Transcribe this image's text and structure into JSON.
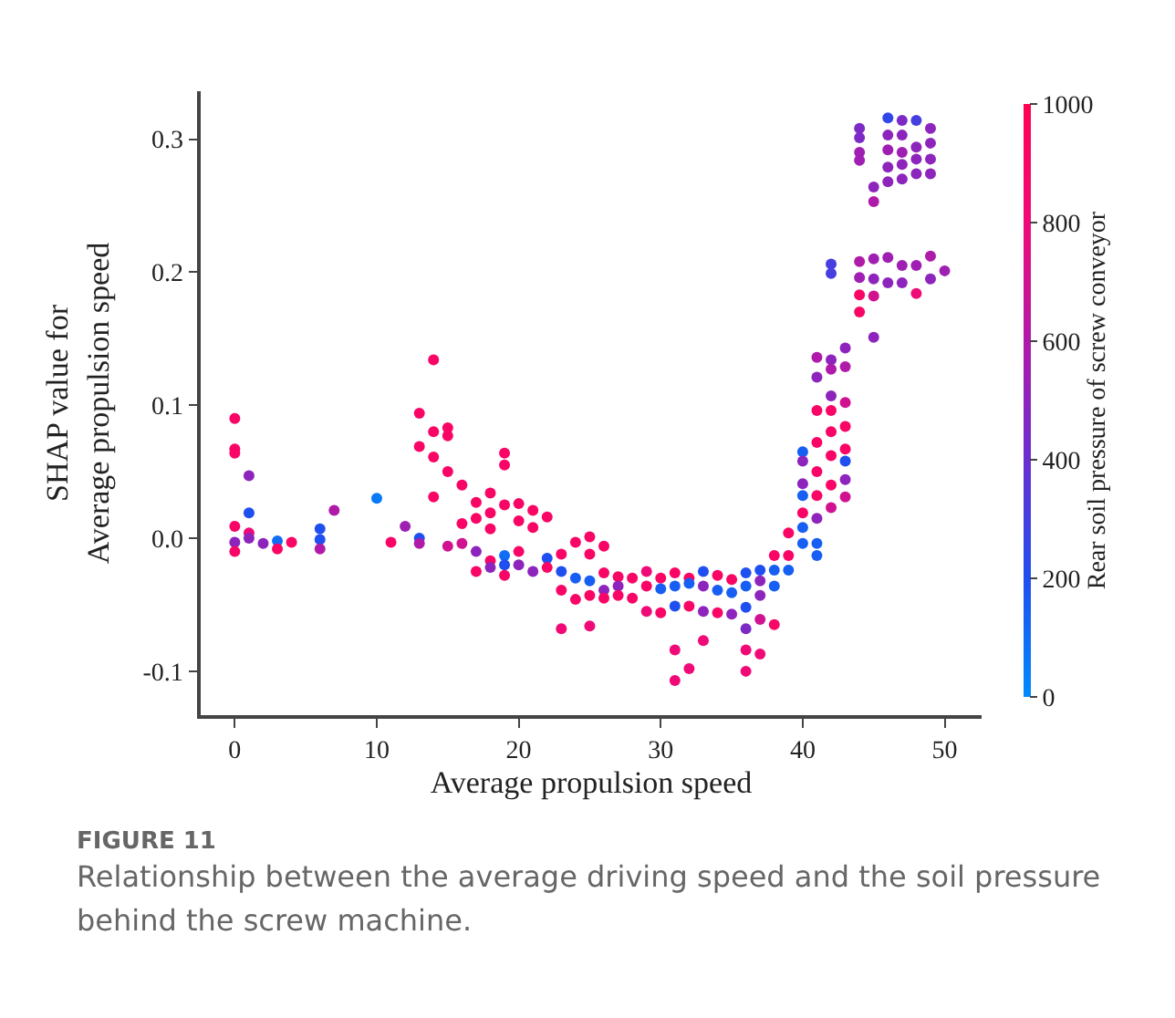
{
  "chart_data": {
    "type": "scatter",
    "xlabel": "Average propulsion speed",
    "ylabel": "SHAP value for\nAverage propulsion speed",
    "clabel": "Rear soil pressure of screw conveyor",
    "annotations": [
      "FIGURE 11",
      "Relationship between the average driving speed and the soil pressure behind the screw machine."
    ],
    "xlim": [
      -2.4,
      52.6
    ],
    "xticks": [
      0,
      10,
      20,
      30,
      40,
      50
    ],
    "ylim": [
      -0.133,
      0.336
    ],
    "yticks": [
      -0.1,
      {
        "value": 0,
        "label": "0.0"
      },
      0.1,
      0.2,
      0.3
    ],
    "clim": [
      0,
      1000
    ],
    "cticks": [
      0,
      200,
      400,
      600,
      800,
      1000
    ],
    "grid": false,
    "marker": "circle",
    "x": [
      0,
      0,
      0,
      0,
      0,
      0,
      1,
      1,
      1,
      1,
      2,
      3,
      3,
      4,
      6,
      6,
      6,
      7,
      10,
      11,
      12,
      13,
      13,
      13,
      13,
      14,
      14,
      14,
      14,
      15,
      15,
      15,
      15,
      16,
      16,
      16,
      17,
      17,
      17,
      17,
      18,
      18,
      18,
      18,
      18,
      19,
      19,
      19,
      19,
      19,
      19,
      20,
      20,
      20,
      20,
      21,
      21,
      21,
      22,
      22,
      22,
      23,
      23,
      23,
      23,
      24,
      24,
      24,
      25,
      25,
      25,
      25,
      25,
      26,
      26,
      26,
      26,
      27,
      27,
      27,
      28,
      28,
      29,
      29,
      29,
      30,
      30,
      30,
      31,
      31,
      31,
      31,
      31,
      32,
      32,
      32,
      32,
      33,
      33,
      33,
      33,
      34,
      34,
      34,
      35,
      35,
      35,
      36,
      36,
      36,
      36,
      36,
      36,
      37,
      37,
      37,
      37,
      37,
      38,
      38,
      38,
      38,
      39,
      39,
      39,
      40,
      40,
      40,
      40,
      40,
      40,
      40,
      41,
      41,
      41,
      41,
      41,
      41,
      41,
      41,
      41,
      42,
      42,
      42,
      42,
      42,
      42,
      42,
      42,
      42,
      42,
      43,
      43,
      43,
      43,
      43,
      43,
      43,
      43,
      44,
      44,
      44,
      44,
      44,
      44,
      44,
      44,
      45,
      45,
      45,
      45,
      45,
      45,
      46,
      46,
      46,
      46,
      46,
      46,
      46,
      47,
      47,
      47,
      47,
      47,
      47,
      47,
      48,
      48,
      48,
      48,
      48,
      48,
      49,
      49,
      49,
      49,
      49,
      49,
      50
    ],
    "values": [
      0.09,
      0.067,
      0.064,
      0.009,
      -0.003,
      -0.01,
      0.047,
      0.019,
      0.004,
      0,
      -0.004,
      -0.002,
      -0.008,
      -0.003,
      0.007,
      -0.001,
      -0.008,
      0.021,
      0.03,
      -0.003,
      0.009,
      0.094,
      0.069,
      0,
      -0.004,
      0.134,
      0.08,
      0.061,
      0.031,
      0.083,
      0.077,
      0.05,
      -0.006,
      0.04,
      0.011,
      -0.004,
      0.027,
      0.015,
      -0.01,
      -0.025,
      0.034,
      0.019,
      0.007,
      -0.017,
      -0.022,
      0.064,
      0.055,
      0.025,
      -0.013,
      -0.02,
      -0.028,
      0.026,
      0.013,
      -0.01,
      -0.02,
      0.021,
      0.008,
      -0.025,
      0.016,
      -0.015,
      -0.022,
      -0.012,
      -0.025,
      -0.039,
      -0.068,
      -0.003,
      -0.03,
      -0.046,
      0.001,
      -0.012,
      -0.032,
      -0.043,
      -0.066,
      -0.006,
      -0.026,
      -0.039,
      -0.045,
      -0.029,
      -0.036,
      -0.043,
      -0.03,
      -0.045,
      -0.025,
      -0.036,
      -0.055,
      -0.03,
      -0.038,
      -0.056,
      -0.026,
      -0.036,
      -0.051,
      -0.084,
      -0.107,
      -0.03,
      -0.034,
      -0.051,
      -0.098,
      -0.025,
      -0.036,
      -0.055,
      -0.077,
      -0.028,
      -0.039,
      -0.056,
      -0.031,
      -0.041,
      -0.057,
      -0.026,
      -0.036,
      -0.052,
      -0.068,
      -0.084,
      -0.1,
      -0.024,
      -0.032,
      -0.043,
      -0.061,
      -0.087,
      -0.013,
      -0.024,
      -0.036,
      -0.065,
      0.004,
      -0.013,
      -0.024,
      0.065,
      0.058,
      0.041,
      0.032,
      0.019,
      0.008,
      -0.004,
      0.136,
      0.121,
      0.096,
      0.072,
      0.05,
      0.032,
      0.015,
      -0.004,
      -0.013,
      0.206,
      0.199,
      0.134,
      0.127,
      0.107,
      0.096,
      0.08,
      0.062,
      0.04,
      0.023,
      0.143,
      0.129,
      0.102,
      0.084,
      0.067,
      0.058,
      0.044,
      0.031,
      0.308,
      0.301,
      0.29,
      0.284,
      0.208,
      0.196,
      0.183,
      0.17,
      0.264,
      0.253,
      0.21,
      0.195,
      0.182,
      0.151,
      0.316,
      0.303,
      0.292,
      0.279,
      0.268,
      0.211,
      0.192,
      0.314,
      0.303,
      0.29,
      0.281,
      0.27,
      0.205,
      0.192,
      0.314,
      0.294,
      0.285,
      0.274,
      0.205,
      0.184,
      0.308,
      0.297,
      0.285,
      0.274,
      0.212,
      0.195,
      0.201
    ],
    "cvalues": [
      900,
      900,
      900,
      900,
      500,
      900,
      500,
      200,
      800,
      500,
      500,
      100,
      900,
      900,
      200,
      200,
      600,
      600,
      50,
      900,
      550,
      900,
      900,
      200,
      600,
      900,
      900,
      900,
      900,
      900,
      900,
      900,
      700,
      900,
      900,
      700,
      900,
      900,
      500,
      900,
      900,
      900,
      900,
      900,
      500,
      900,
      900,
      900,
      100,
      200,
      900,
      900,
      900,
      900,
      500,
      900,
      900,
      500,
      900,
      200,
      900,
      900,
      200,
      900,
      800,
      900,
      150,
      900,
      900,
      900,
      150,
      900,
      800,
      900,
      900,
      500,
      900,
      900,
      500,
      900,
      900,
      900,
      800,
      900,
      800,
      900,
      150,
      900,
      900,
      150,
      200,
      800,
      800,
      900,
      150,
      900,
      800,
      200,
      500,
      500,
      800,
      900,
      150,
      900,
      900,
      150,
      500,
      200,
      150,
      200,
      450,
      800,
      800,
      200,
      500,
      500,
      700,
      800,
      900,
      150,
      150,
      900,
      900,
      900,
      150,
      150,
      500,
      500,
      150,
      900,
      150,
      150,
      600,
      500,
      900,
      900,
      900,
      900,
      500,
      150,
      150,
      300,
      300,
      500,
      600,
      500,
      900,
      900,
      900,
      900,
      700,
      500,
      600,
      700,
      900,
      900,
      200,
      500,
      700,
      450,
      450,
      550,
      550,
      600,
      550,
      900,
      900,
      500,
      600,
      550,
      500,
      700,
      500,
      250,
      500,
      550,
      500,
      500,
      550,
      500,
      450,
      500,
      550,
      500,
      500,
      550,
      500,
      300,
      500,
      500,
      500,
      550,
      800,
      500,
      500,
      500,
      500,
      600,
      500,
      550
    ]
  }
}
